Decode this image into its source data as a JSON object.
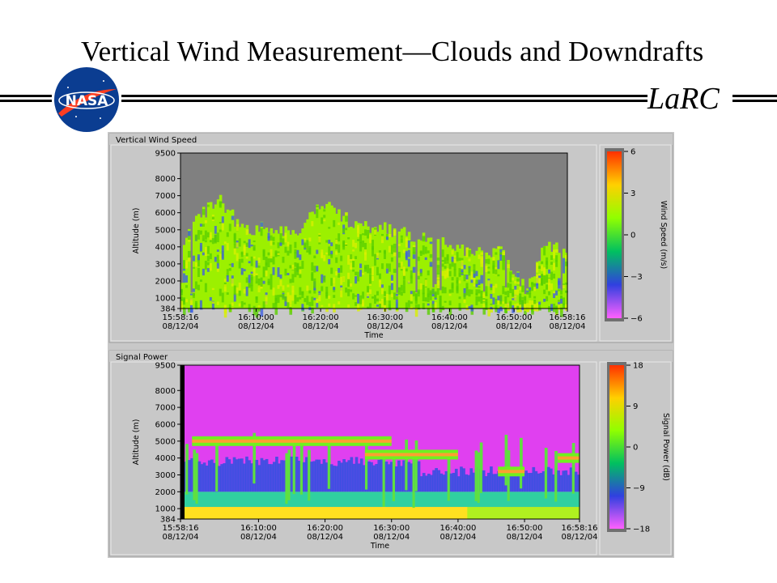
{
  "slide": {
    "title": "Vertical Wind Measurement—Clouds and Downdrafts",
    "org": "LaRC",
    "logo_text": "NASA"
  },
  "chart_data": [
    {
      "type": "heatmap",
      "title": "Vertical Wind Speed",
      "xlabel": "Time",
      "ylabel": "Altitude (m)",
      "x_ticks": [
        {
          "time": "15:58:16",
          "date": "08/12/04"
        },
        {
          "time": "16:10:00",
          "date": "08/12/04"
        },
        {
          "time": "16:20:00",
          "date": "08/12/04"
        },
        {
          "time": "16:30:00",
          "date": "08/12/04"
        },
        {
          "time": "16:40:00",
          "date": "08/12/04"
        },
        {
          "time": "16:50:00",
          "date": "08/12/04"
        },
        {
          "time": "16:58:16",
          "date": "08/12/04"
        }
      ],
      "xlim": [
        "15:58:16",
        "16:58:16"
      ],
      "y_ticks": [
        9500,
        8000,
        7000,
        6000,
        5000,
        4000,
        3000,
        2000,
        1000,
        384
      ],
      "ylim": [
        384,
        9500
      ],
      "colorbar": {
        "label": "Wind Speed (m/s)",
        "ticks": [
          "6",
          "3",
          "0",
          "−3",
          "−6"
        ],
        "range": [
          -6,
          6
        ],
        "colors": [
          "#ff3000",
          "#ffd000",
          "#90ff00",
          "#00c060",
          "#3040e0",
          "#ff60ff"
        ]
      },
      "background_color": "#808080",
      "max_altitude_profile": [
        [
          "15:58:16",
          4000
        ],
        [
          "16:00:00",
          5200
        ],
        [
          "16:04:00",
          6800
        ],
        [
          "16:08:00",
          5000
        ],
        [
          "16:12:00",
          5200
        ],
        [
          "16:16:00",
          4600
        ],
        [
          "16:20:00",
          6700
        ],
        [
          "16:24:00",
          5600
        ],
        [
          "16:28:00",
          5200
        ],
        [
          "16:32:00",
          4800
        ],
        [
          "16:36:00",
          4600
        ],
        [
          "16:40:00",
          4000
        ],
        [
          "16:44:00",
          3600
        ],
        [
          "16:48:00",
          3800
        ],
        [
          "16:52:00",
          1500
        ],
        [
          "16:55:00",
          4200
        ],
        [
          "16:58:16",
          4000
        ]
      ]
    },
    {
      "type": "heatmap",
      "title": "Signal Power",
      "xlabel": "Time",
      "ylabel": "Altitude (m)",
      "x_ticks": [
        {
          "time": "15:58:16",
          "date": "08/12/04"
        },
        {
          "time": "16:10:00",
          "date": "08/12/04"
        },
        {
          "time": "16:20:00",
          "date": "08/12/04"
        },
        {
          "time": "16:30:00",
          "date": "08/12/04"
        },
        {
          "time": "16:40:00",
          "date": "08/12/04"
        },
        {
          "time": "16:50:00",
          "date": "08/12/04"
        },
        {
          "time": "16:58:16",
          "date": "08/12/04"
        }
      ],
      "xlim": [
        "15:58:16",
        "16:58:16"
      ],
      "y_ticks": [
        9500,
        8000,
        7000,
        6000,
        5000,
        4000,
        3000,
        2000,
        1000,
        384
      ],
      "ylim": [
        384,
        9500
      ],
      "colorbar": {
        "label": "Signal Power (dB)",
        "ticks": [
          "18",
          "9",
          "0",
          "−9",
          "−18"
        ],
        "range": [
          -18,
          18
        ],
        "colors": [
          "#ff3000",
          "#ffd000",
          "#90ff00",
          "#00c060",
          "#3040e0",
          "#ff60ff"
        ]
      },
      "background_color": "#e040f0",
      "cloud_layers": [
        {
          "start": "16:00:00",
          "end": "16:30:00",
          "altitude_m": 5000
        },
        {
          "start": "16:26:00",
          "end": "16:40:00",
          "altitude_m": 4200
        },
        {
          "start": "16:46:00",
          "end": "16:50:00",
          "altitude_m": 3200
        },
        {
          "start": "16:55:00",
          "end": "16:58:16",
          "altitude_m": 4000
        }
      ],
      "boundary_layer_top_m": 2000
    }
  ]
}
